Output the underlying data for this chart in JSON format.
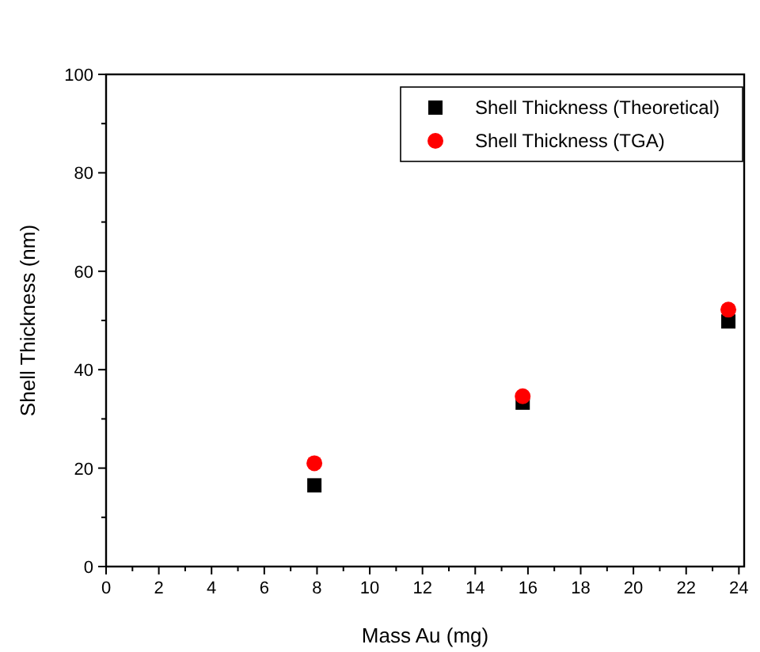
{
  "chart_data": {
    "type": "scatter",
    "xlabel": "Mass Au (mg)",
    "ylabel": "Shell Thickness (nm)",
    "xlim": [
      0,
      24.2
    ],
    "ylim": [
      0,
      100
    ],
    "xticks": [
      0,
      2,
      4,
      6,
      8,
      10,
      12,
      14,
      16,
      18,
      20,
      22,
      24,
      {
        "value": 1,
        "label": null
      },
      {
        "value": 3,
        "label": null
      },
      {
        "value": 5,
        "label": null
      },
      {
        "value": 7,
        "label": null
      },
      {
        "value": 9,
        "label": null
      },
      {
        "value": 11,
        "label": null
      },
      {
        "value": 13,
        "label": null
      },
      {
        "value": 15,
        "label": null
      },
      {
        "value": 17,
        "label": null
      },
      {
        "value": 19,
        "label": null
      },
      {
        "value": 21,
        "label": null
      },
      {
        "value": 23,
        "label": null
      }
    ],
    "yticks": [
      0,
      20,
      40,
      60,
      80,
      100,
      {
        "value": 10,
        "label": null
      },
      {
        "value": 30,
        "label": null
      },
      {
        "value": 50,
        "label": null
      },
      {
        "value": 70,
        "label": null
      },
      {
        "value": 90,
        "label": null
      }
    ],
    "x": [
      7.9,
      15.8,
      23.6
    ],
    "series": [
      {
        "name": "Shell Thickness (Theoretical)",
        "color": "#000000",
        "marker": "square",
        "values": [
          16.5,
          33.3,
          49.8
        ]
      },
      {
        "name": "Shell Thickness (TGA)",
        "color": "#ff0000",
        "marker": "circle",
        "values": [
          21,
          34.6,
          52.2
        ]
      }
    ],
    "legend": "top right",
    "grid": false
  }
}
